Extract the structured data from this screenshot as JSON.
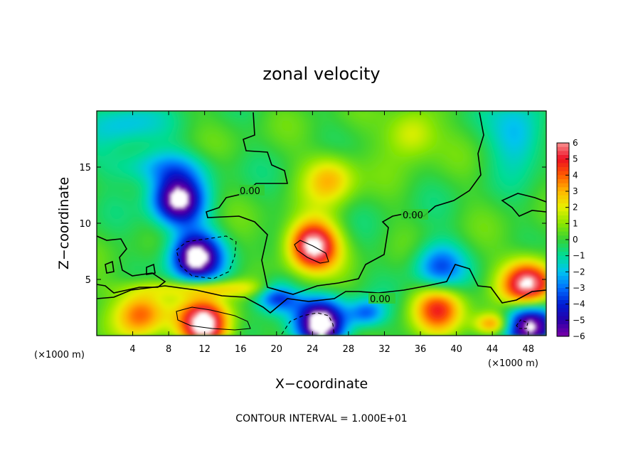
{
  "chart_data": {
    "type": "heatmap",
    "title": "zonal velocity",
    "xlabel": "X−coordinate",
    "ylabel": "Z−coordinate",
    "x_unit": "(×1000 m)",
    "y_unit": "(×1000 m)",
    "xlim": [
      0,
      50
    ],
    "ylim": [
      0,
      20
    ],
    "x_ticks": [
      4,
      8,
      12,
      16,
      20,
      24,
      28,
      32,
      36,
      40,
      44,
      48
    ],
    "x_tick_labels": [
      "4",
      "8",
      "12",
      "16",
      "20",
      "24",
      "28",
      "32",
      "36",
      "40",
      "44",
      "48"
    ],
    "y_ticks": [
      5,
      10,
      15
    ],
    "y_tick_labels": [
      "5",
      "10",
      "15"
    ],
    "colorbar": {
      "min": -6,
      "max": 6,
      "ticks": [
        6,
        5,
        4,
        3,
        2,
        1,
        0,
        -1,
        -2,
        -3,
        -4,
        -5,
        -6
      ],
      "tick_labels": [
        "6",
        "5",
        "4",
        "3",
        "2",
        "1",
        "0",
        "−1",
        "−2",
        "−3",
        "−4",
        "−5",
        "−6"
      ]
    },
    "contour_labels": [
      "0.00",
      "0.00",
      "0.00"
    ],
    "footer": "CONTOUR INTERVAL = 1.000E+01",
    "features": [
      {
        "x": 9,
        "z": 12,
        "value": -6.5
      },
      {
        "x": 11,
        "z": 7,
        "value": -7
      },
      {
        "x": 24,
        "z": 8,
        "value": 7
      },
      {
        "x": 12,
        "z": 1,
        "value": 7
      },
      {
        "x": 25,
        "z": 1,
        "value": -7
      },
      {
        "x": 48,
        "z": 4.5,
        "value": 7
      },
      {
        "x": 48,
        "z": 1,
        "value": -7
      },
      {
        "x": 38,
        "z": 2.5,
        "value": 4.5
      },
      {
        "x": 5,
        "z": 2,
        "value": 4
      },
      {
        "x": 38,
        "z": 6,
        "value": -3.5
      },
      {
        "x": 35,
        "z": 18,
        "value": 2.5
      },
      {
        "x": 26,
        "z": 14,
        "value": 3
      }
    ]
  }
}
